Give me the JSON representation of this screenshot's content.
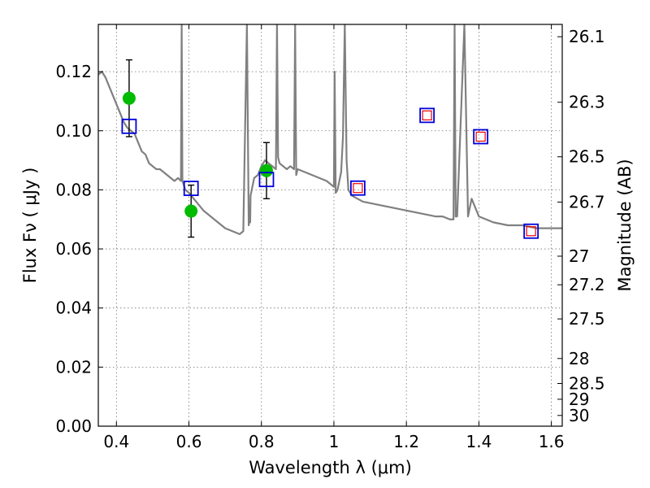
{
  "chart_data": {
    "type": "scatter",
    "xlabel": "Wavelength  λ (μm)",
    "ylabel": "Flux  Fν  ( μJy )",
    "y2label": "Magnitude (AB)",
    "xlim": [
      0.35,
      1.63
    ],
    "ylim": [
      0.0,
      0.136
    ],
    "grid": true,
    "x_ticks": [
      0.4,
      0.6,
      0.8,
      1.0,
      1.2,
      1.4,
      1.6
    ],
    "x_tick_labels": [
      "0.4",
      "0.6",
      "0.8",
      "1",
      "1.2",
      "1.4",
      "1.6"
    ],
    "y_ticks": [
      0.0,
      0.02,
      0.04,
      0.06,
      0.08,
      0.1,
      0.12
    ],
    "y_tick_labels": [
      "0.00",
      "0.02",
      "0.04",
      "0.06",
      "0.08",
      "0.10",
      "0.12"
    ],
    "y2_ticks": [
      26.1,
      26.3,
      26.5,
      26.7,
      27,
      27.2,
      27.5,
      28,
      28.5,
      29,
      30
    ],
    "y2_tick_labels": [
      "26.1",
      "26.3",
      "26.5",
      "26.7",
      "27",
      "27.2",
      "27.5",
      "28",
      "28.5",
      "29",
      "30"
    ],
    "colors": {
      "spectrum": "#808080",
      "observed": "#00bb00",
      "model_outer": "#0000dd",
      "model_inner": "#ee0000",
      "errorbar": "#000000"
    },
    "spectrum": {
      "x": [
        0.35,
        0.36,
        0.37,
        0.38,
        0.39,
        0.4,
        0.41,
        0.42,
        0.43,
        0.44,
        0.45,
        0.46,
        0.47,
        0.48,
        0.49,
        0.5,
        0.51,
        0.52,
        0.53,
        0.54,
        0.55,
        0.56,
        0.57,
        0.578,
        0.58,
        0.582,
        0.585,
        0.59,
        0.6,
        0.62,
        0.64,
        0.66,
        0.68,
        0.7,
        0.72,
        0.74,
        0.75,
        0.76,
        0.765,
        0.767,
        0.769,
        0.77,
        0.78,
        0.79,
        0.8,
        0.81,
        0.82,
        0.83,
        0.84,
        0.843,
        0.846,
        0.85,
        0.86,
        0.87,
        0.88,
        0.89,
        0.893,
        0.896,
        0.9,
        0.92,
        0.94,
        0.96,
        0.98,
        1.0,
        1.002,
        1.005,
        1.01,
        1.02,
        1.025,
        1.03,
        1.035,
        1.04,
        1.05,
        1.08,
        1.12,
        1.16,
        1.2,
        1.24,
        1.28,
        1.3,
        1.32,
        1.33,
        1.333,
        1.336,
        1.34,
        1.36,
        1.37,
        1.38,
        1.4,
        1.42,
        1.44,
        1.48,
        1.52,
        1.56,
        1.6,
        1.63
      ],
      "y": [
        0.119,
        0.12,
        0.118,
        0.115,
        0.112,
        0.109,
        0.106,
        0.103,
        0.101,
        0.1,
        0.099,
        0.096,
        0.093,
        0.092,
        0.089,
        0.088,
        0.087,
        0.087,
        0.086,
        0.085,
        0.084,
        0.083,
        0.084,
        0.083,
        0.136,
        0.083,
        0.082,
        0.08,
        0.079,
        0.076,
        0.073,
        0.071,
        0.069,
        0.067,
        0.066,
        0.065,
        0.066,
        0.136,
        0.068,
        0.07,
        0.069,
        0.078,
        0.084,
        0.085,
        0.088,
        0.09,
        0.089,
        0.088,
        0.087,
        0.136,
        0.091,
        0.089,
        0.088,
        0.087,
        0.088,
        0.087,
        0.136,
        0.085,
        0.087,
        0.086,
        0.085,
        0.084,
        0.083,
        0.081,
        0.12,
        0.079,
        0.08,
        0.086,
        0.098,
        0.136,
        0.09,
        0.08,
        0.078,
        0.076,
        0.075,
        0.074,
        0.073,
        0.072,
        0.071,
        0.071,
        0.07,
        0.07,
        0.136,
        0.071,
        0.071,
        0.136,
        0.071,
        0.077,
        0.071,
        0.07,
        0.069,
        0.068,
        0.068,
        0.067,
        0.067,
        0.067
      ]
    },
    "observed": [
      {
        "x": 0.435,
        "y": 0.111,
        "yerr_low": 0.013,
        "yerr_high": 0.013
      },
      {
        "x": 0.606,
        "y": 0.0728,
        "yerr_low": 0.0088,
        "yerr_high": 0.0088
      },
      {
        "x": 0.814,
        "y": 0.0865,
        "yerr_low": 0.0095,
        "yerr_high": 0.0095
      }
    ],
    "model": [
      {
        "x": 0.435,
        "y": 0.1015
      },
      {
        "x": 0.606,
        "y": 0.0805
      },
      {
        "x": 0.814,
        "y": 0.0835
      },
      {
        "x": 1.066,
        "y": 0.0806
      },
      {
        "x": 1.257,
        "y": 0.1052
      },
      {
        "x": 1.405,
        "y": 0.098
      },
      {
        "x": 1.544,
        "y": 0.066
      }
    ]
  }
}
